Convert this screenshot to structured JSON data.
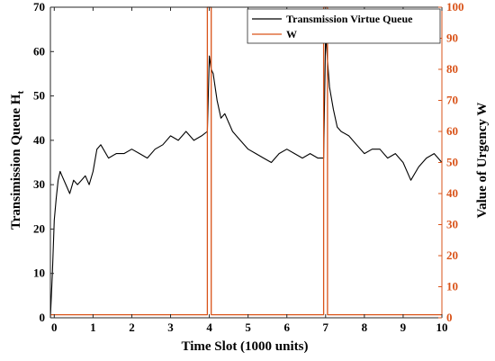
{
  "chart_data": {
    "type": "line",
    "xlabel": "Time Slot (1000 units)",
    "ylabel_left_main": "Transimission Queue H",
    "ylabel_left_sub": "t",
    "ylabel_right": "Value of Urgency W",
    "xlim": [
      -0.1,
      10
    ],
    "ylim_left": [
      0,
      70
    ],
    "ylim_right": [
      0,
      100
    ],
    "x_ticks": [
      "0",
      "1",
      "2",
      "3",
      "4",
      "5",
      "6",
      "7",
      "8",
      "9",
      "10"
    ],
    "y_left_ticks": [
      "0",
      "10",
      "20",
      "30",
      "40",
      "50",
      "60",
      "70"
    ],
    "y_right_ticks": [
      "0",
      "10",
      "20",
      "30",
      "40",
      "50",
      "60",
      "70",
      "80",
      "90",
      "100"
    ],
    "legend_position": "top-right",
    "colors": {
      "queue": "#000000",
      "urgency": "#d95319",
      "axis": "#262626"
    },
    "series": [
      {
        "name": "Transmission Virtue Queue",
        "axis": "left",
        "x": [
          -0.1,
          -0.05,
          0.0,
          0.05,
          0.1,
          0.15,
          0.2,
          0.3,
          0.4,
          0.5,
          0.6,
          0.7,
          0.8,
          0.9,
          1.0,
          1.1,
          1.2,
          1.4,
          1.6,
          1.8,
          2.0,
          2.2,
          2.4,
          2.6,
          2.8,
          3.0,
          3.2,
          3.4,
          3.6,
          3.8,
          3.95,
          4.0,
          4.05,
          4.1,
          4.2,
          4.3,
          4.4,
          4.6,
          4.8,
          5.0,
          5.2,
          5.4,
          5.6,
          5.8,
          6.0,
          6.2,
          6.4,
          6.6,
          6.8,
          6.95,
          7.0,
          7.05,
          7.1,
          7.2,
          7.3,
          7.4,
          7.6,
          7.8,
          8.0,
          8.2,
          8.4,
          8.6,
          8.8,
          9.0,
          9.2,
          9.4,
          9.6,
          9.8,
          10.0
        ],
        "values": [
          0,
          10,
          22,
          27,
          31,
          33,
          32,
          30,
          28,
          31,
          30,
          31,
          32,
          30,
          33,
          38,
          39,
          36,
          37,
          37,
          38,
          37,
          36,
          38,
          39,
          41,
          40,
          42,
          40,
          41,
          42,
          59,
          56,
          55,
          49,
          45,
          46,
          42,
          40,
          38,
          37,
          36,
          35,
          37,
          38,
          37,
          36,
          37,
          36,
          36,
          64,
          58,
          52,
          47,
          43,
          42,
          41,
          39,
          37,
          38,
          38,
          36,
          37,
          35,
          31,
          34,
          36,
          37,
          35
        ]
      },
      {
        "name": "W",
        "axis": "right",
        "x": [
          -0.1,
          3.95,
          3.95,
          4.05,
          4.05,
          6.95,
          6.95,
          7.05,
          7.05,
          10.0
        ],
        "values": [
          1,
          1,
          100,
          100,
          1,
          1,
          100,
          100,
          1,
          1
        ]
      }
    ]
  }
}
